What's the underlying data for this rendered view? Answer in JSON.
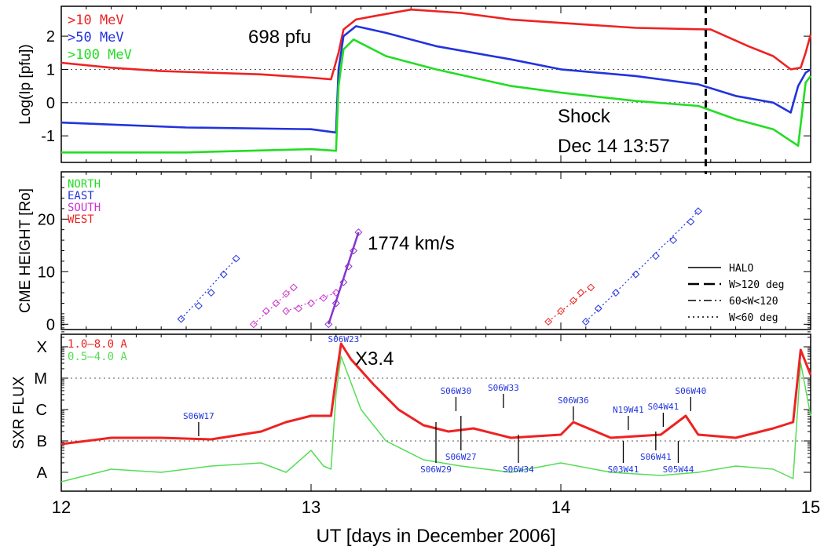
{
  "xaxis": {
    "label": "UT [days in December 2006]",
    "range": [
      12,
      15
    ],
    "ticks": [
      "12",
      "13",
      "14",
      "15"
    ]
  },
  "chart_data": [
    {
      "type": "line",
      "panel": "protons",
      "ylabel": "Log(Ip [pfu])",
      "ylim": [
        -1.8,
        2.9
      ],
      "yticks": [
        "-1",
        "0",
        "1",
        "2"
      ],
      "ref_lines": [
        0,
        1
      ],
      "legend": [
        ">10 MeV",
        ">50 MeV",
        ">100 MeV"
      ],
      "series": [
        {
          "name": ">10 MeV",
          "color": "#ee2222",
          "x": [
            12.0,
            12.2,
            12.4,
            12.6,
            12.8,
            12.9,
            13.0,
            13.08,
            13.11,
            13.13,
            13.18,
            13.25,
            13.4,
            13.6,
            13.8,
            14.0,
            14.3,
            14.6,
            14.75,
            14.85,
            14.92,
            14.96,
            14.98,
            15.0
          ],
          "values": [
            1.2,
            1.05,
            0.95,
            0.9,
            0.85,
            0.8,
            0.75,
            0.7,
            1.5,
            2.2,
            2.5,
            2.6,
            2.8,
            2.7,
            2.5,
            2.4,
            2.25,
            2.2,
            1.7,
            1.4,
            1.0,
            1.05,
            1.5,
            2.05
          ]
        },
        {
          "name": ">50 MeV",
          "color": "#2233dd",
          "x": [
            12.0,
            12.5,
            13.0,
            13.1,
            13.11,
            13.13,
            13.18,
            13.3,
            13.5,
            13.8,
            14.0,
            14.3,
            14.55,
            14.7,
            14.85,
            14.92,
            14.95,
            14.98,
            15.0
          ],
          "values": [
            -0.6,
            -0.75,
            -0.8,
            -0.9,
            1.0,
            2.0,
            2.3,
            2.1,
            1.7,
            1.3,
            1.0,
            0.8,
            0.55,
            0.2,
            0.0,
            -0.3,
            0.5,
            0.9,
            1.0
          ]
        },
        {
          "name": ">100 MeV",
          "color": "#22dd22",
          "x": [
            12.0,
            12.5,
            13.0,
            13.1,
            13.11,
            13.13,
            13.17,
            13.3,
            13.5,
            13.8,
            14.0,
            14.3,
            14.55,
            14.7,
            14.85,
            14.95,
            14.98,
            15.0
          ],
          "values": [
            -1.5,
            -1.5,
            -1.4,
            -1.45,
            0.5,
            1.6,
            1.9,
            1.4,
            1.0,
            0.5,
            0.3,
            0.05,
            -0.1,
            -0.5,
            -0.8,
            -1.3,
            0.6,
            0.8
          ]
        }
      ],
      "annotations": {
        "peak_label": "698 pfu",
        "shock_line1": "Shock",
        "shock_line2": "Dec 14 13:57",
        "shock_x": 14.58
      }
    },
    {
      "type": "scatter",
      "panel": "cme",
      "ylabel": "CME HEIGHT [Ro]",
      "ylim": [
        -1,
        29
      ],
      "yticks": [
        "0",
        "10",
        "20"
      ],
      "legend": [
        "NORTH",
        "EAST",
        "SOUTH",
        "WEST"
      ],
      "legend_colors": [
        "#22dd22",
        "#2233dd",
        "#cc33cc",
        "#ee2222"
      ],
      "line_style_legend": [
        "HALO",
        "W>120 deg",
        "60<W<120",
        "W<60 deg"
      ],
      "speed_label": "1774 km/s",
      "series": [
        {
          "name": "EAST",
          "color": "#2233dd",
          "x": [
            12.48,
            12.55,
            12.6,
            12.65,
            12.7
          ],
          "values": [
            1,
            3.5,
            6,
            9.5,
            12.5
          ]
        },
        {
          "name": "SOUTH",
          "color": "#cc33cc",
          "x": [
            12.77,
            12.82,
            12.86,
            12.9,
            12.93
          ],
          "values": [
            0,
            2.5,
            4,
            5.8,
            7
          ]
        },
        {
          "name": "SOUTH",
          "color": "#cc33cc",
          "x": [
            12.9,
            12.95,
            13.0,
            13.05,
            13.1
          ],
          "values": [
            2.5,
            3,
            4,
            5,
            6
          ]
        },
        {
          "name": "SOUTH",
          "color": "#8833cc",
          "x": [
            13.07,
            13.1,
            13.13,
            13.15,
            13.17,
            13.19
          ],
          "values": [
            0,
            4,
            8,
            11,
            14,
            17.5
          ]
        },
        {
          "name": "WEST",
          "color": "#ee2222",
          "x": [
            13.95,
            14.0,
            14.05,
            14.08,
            14.12
          ],
          "values": [
            0.5,
            2.5,
            4.5,
            6,
            7
          ]
        },
        {
          "name": "EAST",
          "color": "#2233dd",
          "x": [
            14.1,
            14.15,
            14.22,
            14.3,
            14.38,
            14.45,
            14.52,
            14.55
          ],
          "values": [
            0.5,
            3,
            6,
            9.5,
            13,
            16,
            19.5,
            21.5
          ]
        }
      ]
    },
    {
      "type": "line",
      "panel": "sxr",
      "ylabel": "SXR FLUX",
      "ylim": [
        -0.6,
        4.4
      ],
      "yticks": [
        "A",
        "B",
        "C",
        "M",
        "X"
      ],
      "ref_lines": [
        1,
        3
      ],
      "legend": [
        "1.0–8.0 A",
        "0.5–4.0 A"
      ],
      "flare_class": "X3.4",
      "series": [
        {
          "name": "1.0–8.0 A",
          "color": "#ee2222",
          "x": [
            12.0,
            12.2,
            12.4,
            12.6,
            12.8,
            12.9,
            13.0,
            13.08,
            13.1,
            13.12,
            13.16,
            13.25,
            13.35,
            13.45,
            13.55,
            13.65,
            13.8,
            14.0,
            14.05,
            14.2,
            14.4,
            14.5,
            14.55,
            14.7,
            14.85,
            14.93,
            14.96,
            15.0
          ],
          "values": [
            0.9,
            1.1,
            1.1,
            1.05,
            1.3,
            1.6,
            1.8,
            1.8,
            3.0,
            4.1,
            3.6,
            2.8,
            2.0,
            1.5,
            1.3,
            1.4,
            1.1,
            1.2,
            1.6,
            1.1,
            1.2,
            1.8,
            1.2,
            1.1,
            1.4,
            1.6,
            3.9,
            3.1
          ]
        },
        {
          "name": "0.5–4.0 A",
          "color": "#55dd55",
          "x": [
            12.0,
            12.2,
            12.4,
            12.6,
            12.8,
            12.9,
            13.0,
            13.05,
            13.08,
            13.1,
            13.12,
            13.2,
            13.3,
            13.45,
            13.6,
            13.8,
            14.0,
            14.2,
            14.4,
            14.55,
            14.7,
            14.85,
            14.93,
            14.96,
            15.0
          ],
          "values": [
            -0.3,
            0.1,
            0.0,
            0.2,
            0.3,
            0.0,
            0.7,
            0.2,
            0.1,
            2.5,
            3.7,
            2.0,
            1.0,
            0.4,
            0.2,
            0.0,
            0.3,
            0.0,
            -0.1,
            0.0,
            0.2,
            0.1,
            -0.2,
            3.5,
            1.8
          ]
        }
      ],
      "flares": [
        {
          "label": "S06W17",
          "x": 12.55,
          "value": 1.1
        },
        {
          "label": "S06W23",
          "x": 13.13,
          "value": 4.1
        },
        {
          "label": "S06W30",
          "x": 13.58,
          "value": 1.9
        },
        {
          "label": "S06W29",
          "x": 13.5,
          "value": 1.7
        },
        {
          "label": "S06W27",
          "x": 13.6,
          "value": 1.9
        },
        {
          "label": "S06W33",
          "x": 13.77,
          "value": 2.0
        },
        {
          "label": "S06W34",
          "x": 13.83,
          "value": 1.3
        },
        {
          "label": "S06W36",
          "x": 14.05,
          "value": 1.6
        },
        {
          "label": "N19W41",
          "x": 14.27,
          "value": 1.3
        },
        {
          "label": "S03W41",
          "x": 14.25,
          "value": 1.1
        },
        {
          "label": "S04W41",
          "x": 14.41,
          "value": 1.4
        },
        {
          "label": "S06W41",
          "x": 14.38,
          "value": 1.4
        },
        {
          "label": "S06W40",
          "x": 14.52,
          "value": 1.9
        },
        {
          "label": "S05W44",
          "x": 14.47,
          "value": 1.1
        }
      ]
    }
  ]
}
